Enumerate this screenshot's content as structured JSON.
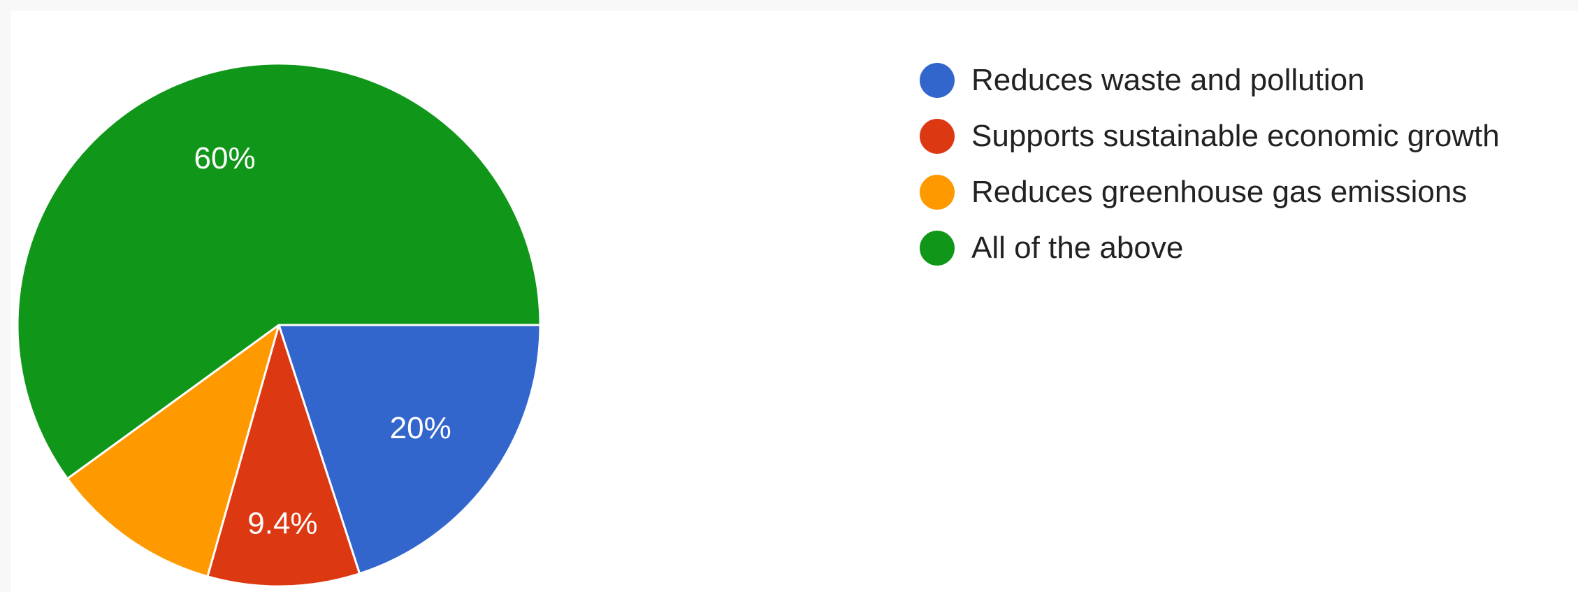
{
  "chart_data": {
    "type": "pie",
    "categories": [
      "Reduces waste and pollution",
      "Supports sustainable economic growth",
      "Reduces greenhouse gas emissions",
      "All of the above"
    ],
    "values": [
      20,
      9.4,
      10.6,
      60
    ],
    "value_labels": [
      "20%",
      "9.4%",
      "",
      "60%"
    ],
    "colors": [
      "#3366cc",
      "#dc3912",
      "#ff9900",
      "#109618"
    ],
    "legend_position": "right",
    "start": "3 o'clock",
    "direction": "clockwise"
  }
}
